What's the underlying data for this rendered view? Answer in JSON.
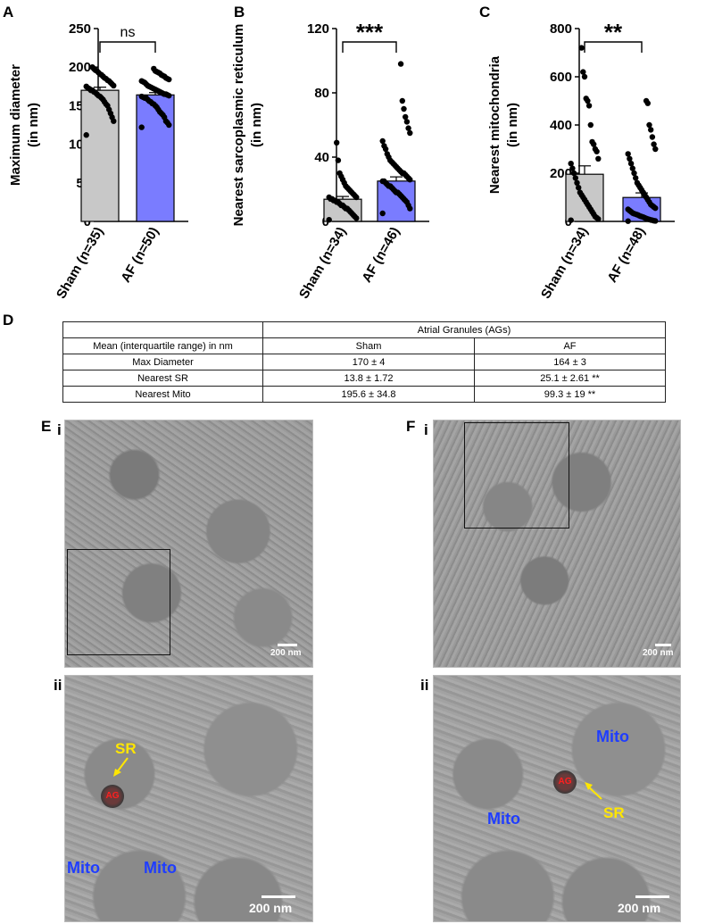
{
  "panels": {
    "A": "A",
    "B": "B",
    "C": "C",
    "D": "D",
    "E": "E",
    "F": "F",
    "sub_i": "i",
    "sub_ii": "ii"
  },
  "chart_data": [
    {
      "type": "bar",
      "panel": "A",
      "categories": [
        "Sham (n=35)",
        "AF (n=50)"
      ],
      "values": [
        170,
        164
      ],
      "sem": [
        4,
        3
      ],
      "ylabel": "Maximum diameter\n(in nm)",
      "ylim": [
        0,
        250
      ],
      "yticks": [
        0,
        50,
        100,
        150,
        200,
        250
      ],
      "significance": "ns",
      "bar_colors": [
        "#c8c8c8",
        "#7a7cff"
      ],
      "points": [
        [
          112,
          130,
          135,
          140,
          145,
          150,
          152,
          155,
          158,
          160,
          162,
          163,
          165,
          167,
          168,
          170,
          170,
          172,
          173,
          175,
          176,
          178,
          180,
          182,
          183,
          185,
          186,
          188,
          190,
          191,
          193,
          195,
          196,
          198,
          200
        ],
        [
          122,
          125,
          128,
          130,
          135,
          138,
          140,
          142,
          145,
          148,
          150,
          152,
          153,
          155,
          156,
          158,
          160,
          160,
          161,
          162,
          163,
          164,
          165,
          165,
          166,
          167,
          168,
          169,
          170,
          171,
          172,
          173,
          174,
          175,
          176,
          178,
          180,
          181,
          182,
          184,
          185,
          186,
          188,
          189,
          190,
          192,
          193,
          194,
          195,
          198
        ]
      ]
    },
    {
      "type": "bar",
      "panel": "B",
      "categories": [
        "Sham (n=34)",
        "AF (n=46)"
      ],
      "values": [
        13.8,
        25.1
      ],
      "sem": [
        1.72,
        2.61
      ],
      "ylabel": "Nearest sarcoplasmic reticulum\n(in nm)",
      "ylim": [
        0,
        120
      ],
      "yticks": [
        0,
        40,
        80,
        120
      ],
      "significance": "***",
      "bar_colors": [
        "#c8c8c8",
        "#7a7cff"
      ],
      "points": [
        [
          1,
          2,
          3,
          4,
          5,
          6,
          7,
          8,
          8,
          9,
          10,
          10,
          11,
          12,
          12,
          13,
          13,
          14,
          14,
          15,
          15,
          16,
          17,
          18,
          19,
          20,
          21,
          22,
          24,
          26,
          28,
          30,
          38,
          49
        ],
        [
          5,
          8,
          10,
          12,
          13,
          14,
          15,
          16,
          17,
          18,
          18,
          19,
          20,
          21,
          22,
          22,
          23,
          24,
          25,
          25,
          26,
          27,
          28,
          29,
          30,
          30,
          31,
          32,
          33,
          34,
          35,
          36,
          37,
          38,
          40,
          42,
          45,
          47,
          50,
          55,
          58,
          62,
          65,
          70,
          75,
          98
        ]
      ]
    },
    {
      "type": "bar",
      "panel": "C",
      "categories": [
        "Sham (n=34)",
        "AF (n=48)"
      ],
      "values": [
        195.6,
        99.3
      ],
      "sem": [
        34.8,
        19
      ],
      "ylabel": "Nearest mitochondria\n(in nm)",
      "ylim": [
        0,
        800
      ],
      "yticks": [
        0,
        200,
        400,
        600,
        800
      ],
      "significance": "**",
      "bar_colors": [
        "#c8c8c8",
        "#7a7cff"
      ],
      "points": [
        [
          5,
          10,
          15,
          20,
          30,
          40,
          50,
          60,
          70,
          80,
          90,
          100,
          110,
          120,
          140,
          160,
          180,
          200,
          220,
          240,
          260,
          290,
          300,
          320,
          330,
          400,
          480,
          500,
          510,
          600,
          620,
          720
        ],
        [
          1,
          2,
          3,
          5,
          6,
          8,
          10,
          12,
          15,
          18,
          20,
          22,
          25,
          28,
          30,
          32,
          35,
          40,
          45,
          50,
          55,
          60,
          65,
          70,
          80,
          90,
          100,
          110,
          120,
          130,
          140,
          150,
          160,
          180,
          200,
          220,
          240,
          260,
          280,
          300,
          320,
          350,
          380,
          400,
          490,
          500
        ]
      ]
    }
  ],
  "table": {
    "header_group": "Atrial Granules (AGs)",
    "col_label": "Mean (interquartile range) in nm",
    "col_sham": "Sham",
    "col_af": "AF",
    "rows": [
      {
        "label": "Max Diameter",
        "sham": "170 ± 4",
        "af": "164 ± 3"
      },
      {
        "label": "Nearest SR",
        "sham": "13.8 ± 1.72",
        "af": "25.1 ± 2.61 **"
      },
      {
        "label": "Nearest Mito",
        "sham": "195.6 ± 34.8",
        "af": "99.3 ± 19 **"
      }
    ]
  },
  "micrographs": {
    "scale_small": "200 nm",
    "scale_large": "200 nm",
    "mito": "Mito",
    "sr": "SR",
    "ag": "AG"
  }
}
